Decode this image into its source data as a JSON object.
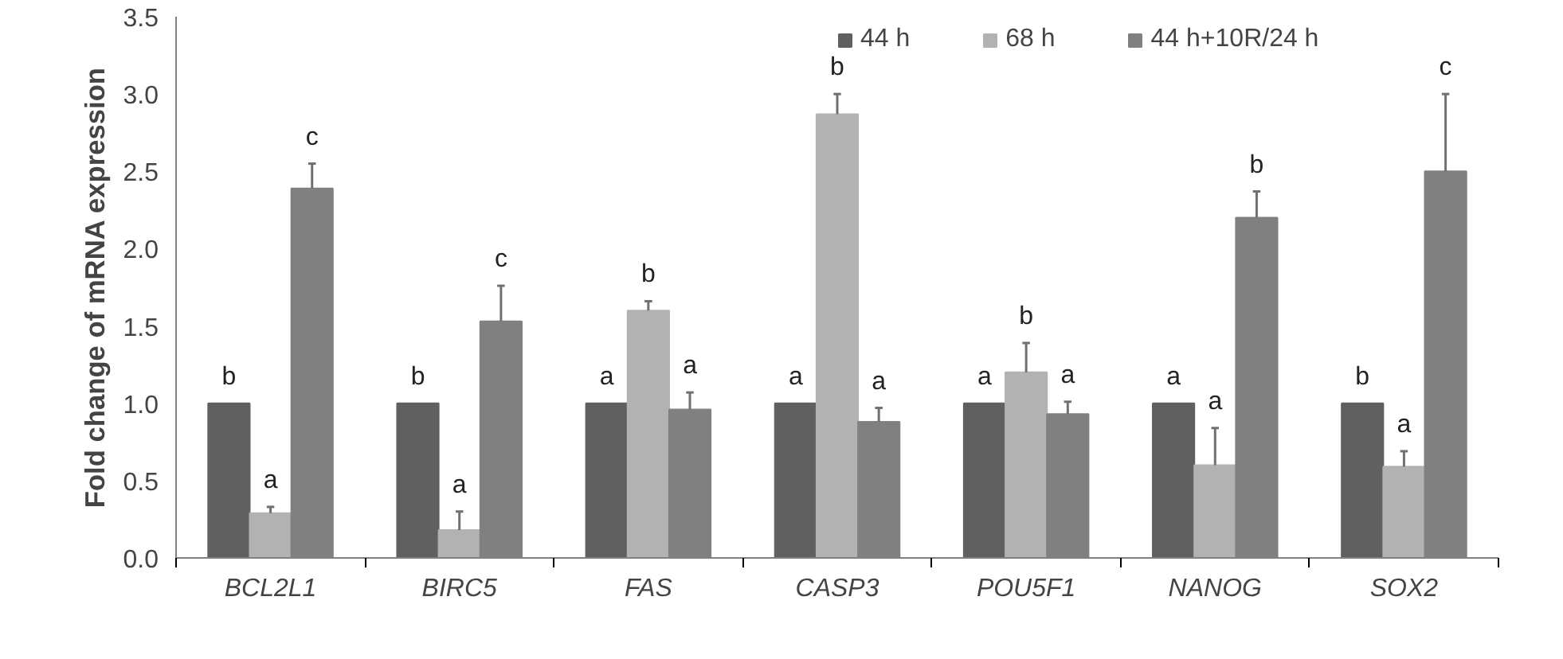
{
  "chart_data": {
    "type": "bar",
    "ylabel": "Fold change of mRNA expression",
    "categories": [
      "BCL2L1",
      "BIRC5",
      "FAS",
      "CASP3",
      "POU5F1",
      "NANOG",
      "SOX2"
    ],
    "series": [
      {
        "name": "44 h",
        "color": "#606060",
        "values": [
          1.0,
          1.0,
          1.0,
          1.0,
          1.0,
          1.0,
          1.0
        ]
      },
      {
        "name": "68 h",
        "color": "#b2b2b2",
        "values": [
          0.29,
          0.18,
          1.6,
          2.87,
          1.2,
          0.6,
          0.59
        ],
        "errors": [
          [
            0.29,
            0.33
          ],
          [
            0.18,
            0.3
          ],
          [
            1.6,
            1.66
          ],
          [
            2.87,
            3.0
          ],
          [
            1.2,
            1.39
          ],
          [
            0.6,
            0.84
          ],
          [
            0.59,
            0.69
          ]
        ]
      },
      {
        "name": "44 h+10R/24 h",
        "color": "#808080",
        "values": [
          2.39,
          1.53,
          0.96,
          0.88,
          0.93,
          2.2,
          2.5
        ],
        "errors": [
          [
            2.39,
            2.55
          ],
          [
            1.53,
            1.76
          ],
          [
            0.96,
            1.07
          ],
          [
            0.88,
            0.97
          ],
          [
            0.93,
            1.01
          ],
          [
            2.2,
            2.37
          ],
          [
            2.5,
            3.0
          ]
        ]
      }
    ],
    "ylim": [
      0,
      3.5
    ],
    "yticks": [
      {
        "value": 0,
        "label": "0.0"
      },
      0.5,
      {
        "value": 1,
        "label": "1.0"
      },
      1.5,
      {
        "value": 2,
        "label": "2.0"
      },
      2.5,
      {
        "value": 3,
        "label": "3.0"
      },
      3.5
    ],
    "legend": "top right",
    "grid": false,
    "annotations": [
      "b",
      "a",
      "c",
      "b",
      "a",
      "c",
      "a",
      "b",
      "a",
      "a",
      "b",
      "a",
      "a",
      "b",
      "a",
      "a",
      "a",
      "b",
      "b",
      "a",
      "c"
    ]
  }
}
